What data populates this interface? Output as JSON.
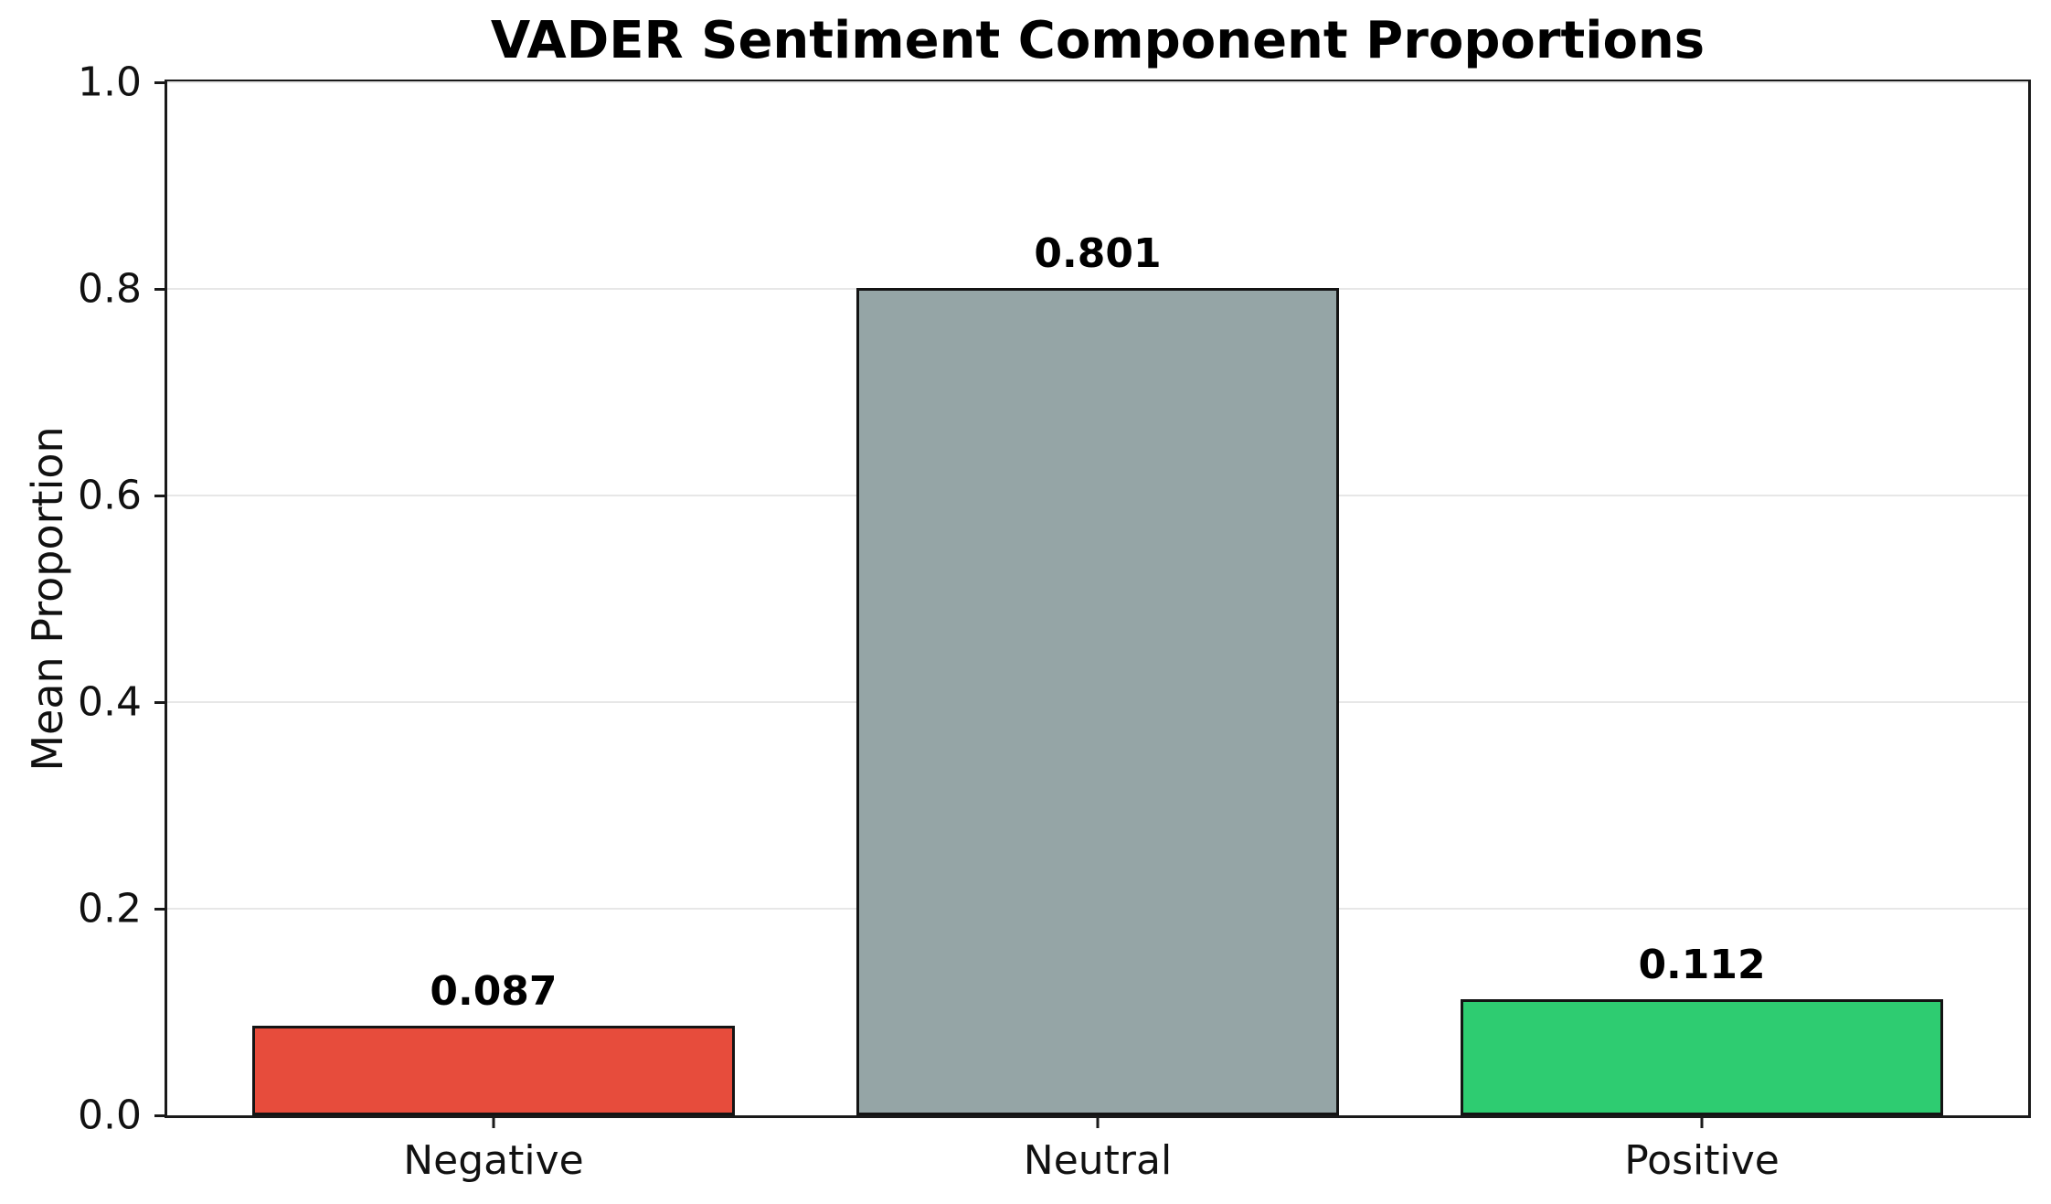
{
  "chart_data": {
    "type": "bar",
    "title": "VADER Sentiment Component Proportions",
    "xlabel": "",
    "ylabel": "Mean Proportion",
    "categories": [
      "Negative",
      "Neutral",
      "Positive"
    ],
    "values": [
      0.087,
      0.801,
      0.112
    ],
    "value_labels": [
      "0.087",
      "0.801",
      "0.112"
    ],
    "bar_colors": [
      "#e74c3c",
      "#95a5a6",
      "#2ecc71"
    ],
    "bar_edge_color": "#141414",
    "ylim": [
      0.0,
      1.0
    ],
    "yticks": [
      0.0,
      0.2,
      0.4,
      0.6,
      0.8,
      1.0
    ],
    "ytick_labels": [
      "0.0",
      "0.2",
      "0.4",
      "0.6",
      "0.8",
      "1.0"
    ],
    "x_range": [
      -0.54,
      2.54
    ],
    "bar_width_units": 0.8,
    "grid": "horizontal",
    "grid_color": "#e7e7e7",
    "legend": "none",
    "background_color": "#ffffff"
  }
}
